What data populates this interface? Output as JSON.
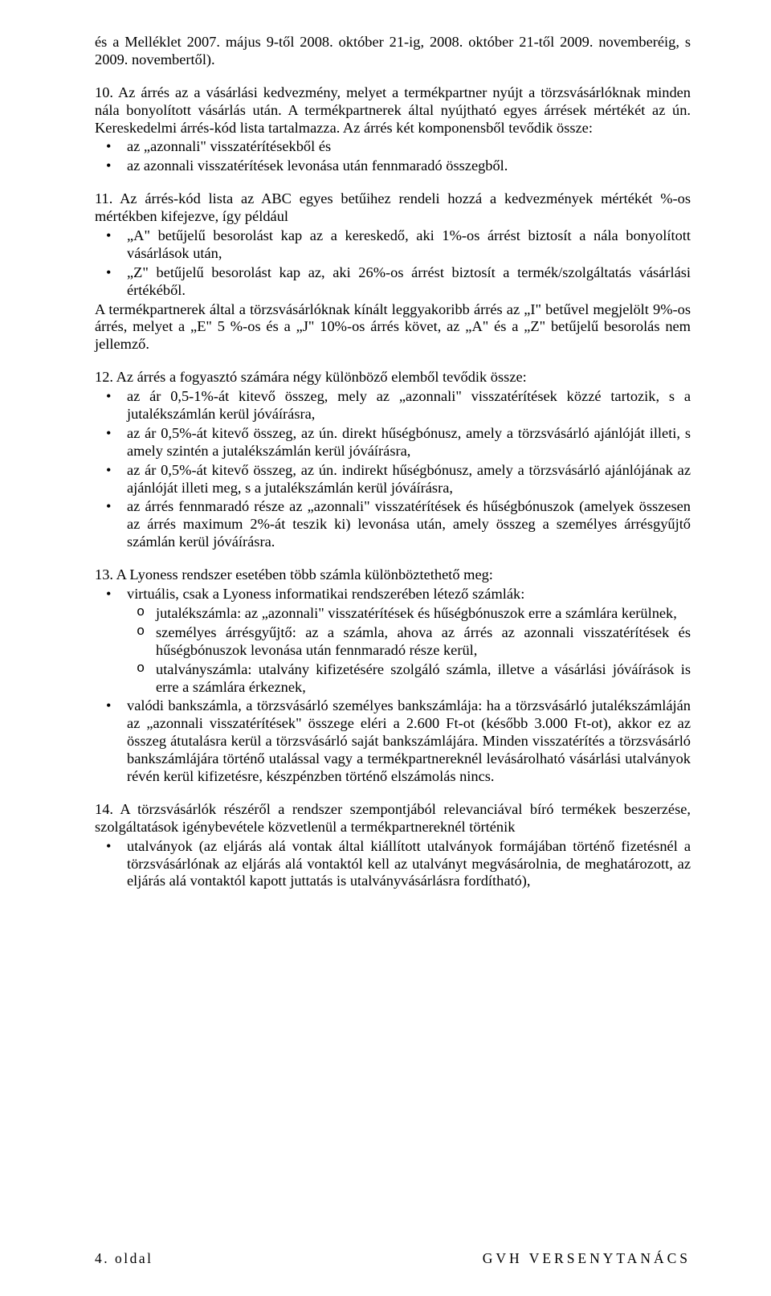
{
  "p1": "és a Melléklet 2007. május 9-től 2008. október 21-ig, 2008. október 21-től 2009. novemberéig, s 2009. novembertől).",
  "sec10": {
    "lead": "10. Az árrés az a vásárlási kedvezmény, melyet a termékpartner nyújt a törzsvásárlóknak minden nála bonyolított vásárlás után. A termékpartnerek által nyújtható egyes árrések mértékét az ún. Kereskedelmi árrés-kód lista tartalmazza. Az árrés két komponensből tevődik össze:",
    "items": [
      "az „azonnali\" visszatérítésekből és",
      "az azonnali visszatérítések levonása után fennmaradó összegből."
    ]
  },
  "sec11": {
    "lead": "11. Az árrés-kód lista az ABC egyes betűihez rendeli hozzá a kedvezmények mértékét %-os mértékben kifejezve, így például",
    "items": [
      "„A\" betűjelű besorolást kap az a kereskedő, aki 1%-os árrést biztosít a nála bonyolított vásárlások után,",
      "„Z\" betűjelű besorolást kap az, aki 26%-os árrést biztosít a termék/szolgáltatás vásárlási értékéből."
    ],
    "tail": "A termékpartnerek által a törzsvásárlóknak kínált leggyakoribb árrés az „I\" betűvel megjelölt 9%-os árrés, melyet a „E\" 5 %-os és a „J\" 10%-os árrés követ, az „A\" és a „Z\" betűjelű besorolás nem jellemző."
  },
  "sec12": {
    "lead": "12. Az árrés a fogyasztó számára négy különböző elemből tevődik össze:",
    "items": [
      "az ár 0,5-1%-át kitevő összeg, mely az „azonnali\" visszatérítések közzé tartozik, s a jutalékszámlán kerül jóváírásra,",
      "az ár 0,5%-át kitevő összeg, az ún. direkt hűségbónusz, amely a törzsvásárló ajánlóját illeti, s amely szintén a jutalékszámlán kerül jóváírásra,",
      "az ár 0,5%-át kitevő összeg, az ún. indirekt hűségbónusz, amely a törzsvásárló ajánlójának az ajánlóját illeti meg, s a jutalékszámlán kerül jóváírásra,",
      "az árrés fennmaradó része az „azonnali\" visszatérítések és hűségbónuszok (amelyek összesen az árrés maximum 2%-át teszik ki) levonása után, amely összeg a személyes árrésgyűjtő számlán kerül jóváírásra."
    ]
  },
  "sec13": {
    "lead": "13. A Lyoness rendszer esetében több számla különböztethető meg:",
    "b1": {
      "lead": "virtuális, csak a Lyoness informatikai rendszerében létező számlák:",
      "subs": [
        "jutalékszámla: az „azonnali\" visszatérítések és hűségbónuszok erre a számlára kerülnek,",
        "személyes árrésgyűjtő: az a számla, ahova az árrés az azonnali visszatérítések és hűségbónuszok levonása után fennmaradó része kerül,",
        "utalványszámla: utalvány kifizetésére szolgáló számla, illetve a vásárlási jóváírások is erre a számlára érkeznek,"
      ]
    },
    "b2": "valódi bankszámla, a törzsvásárló személyes bankszámlája: ha a törzsvásárló jutalékszámláján az „azonnali visszatérítések\" összege eléri a 2.600 Ft-ot (később 3.000 Ft-ot), akkor ez az összeg átutalásra kerül a törzsvásárló saját bankszámlájára. Minden visszatérítés a törzsvásárló bankszámlájára történő utalással vagy a termékpartnereknél levásárolható vásárlási utalványok révén kerül kifizetésre, készpénzben történő elszámolás nincs."
  },
  "sec14": {
    "lead": "14. A törzsvásárlók részéről a rendszer szempontjából relevanciával bíró termékek beszerzése, szolgáltatások igénybevétele közvetlenül a termékpartnereknél történik",
    "items": [
      "utalványok (az eljárás alá vontak által kiállított utalványok formájában történő fizetésnél a törzsvásárlónak az eljárás alá vontaktól kell az utalványt megvásárolnia, de meghatározott, az eljárás alá vontaktól kapott juttatás is utalványvásárlásra fordítható),"
    ]
  },
  "footer": {
    "left": "4. oldal",
    "right": "GVH VERSENYTANÁCS"
  }
}
